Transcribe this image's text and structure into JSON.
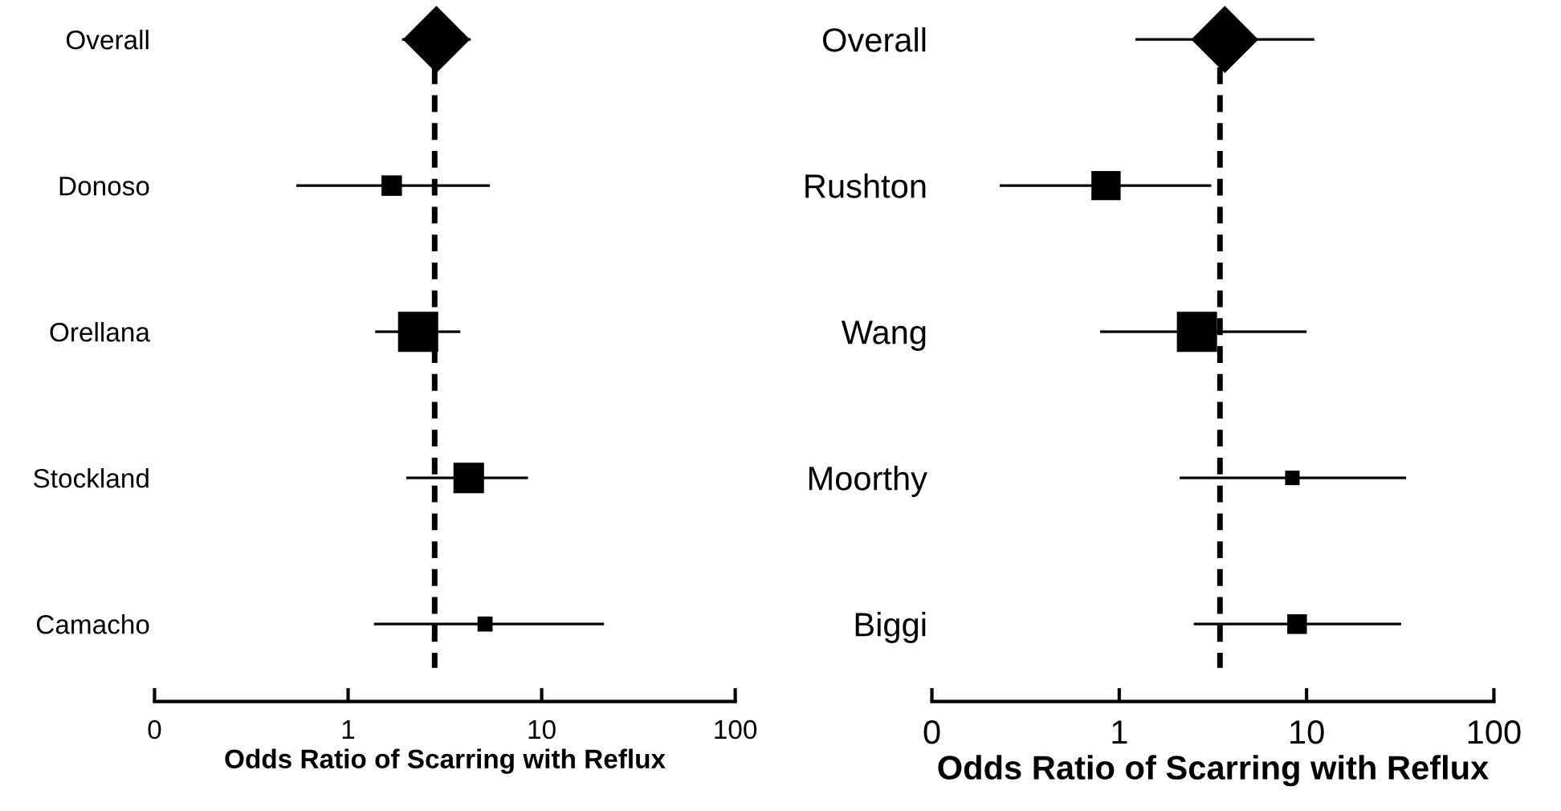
{
  "chart_data": [
    {
      "type": "scatter",
      "orientation": "horizontal",
      "log": "x",
      "xlabel": "Odds Ratio of Scarring with Reflux",
      "categories": [
        "Overall",
        "Donoso",
        "Orellana",
        "Stockland",
        "Camacho"
      ],
      "series": [
        {
          "marker": "diamond",
          "color": "#000000",
          "values": [
            2.86,
            null,
            null,
            null,
            null
          ],
          "errors": [
            [
              1.9,
              4.3
            ],
            null,
            null,
            null,
            null
          ]
        },
        {
          "type": "bubble",
          "marker": "square",
          "color": "#000000",
          "values": [
            null,
            1.68,
            2.3,
            4.2,
            5.1
          ],
          "sizes": [
            null,
            0.26,
            1,
            0.58,
            0.14
          ],
          "errors": [
            null,
            [
              0.54,
              5.4
            ],
            [
              1.38,
              3.8
            ],
            [
              2.0,
              8.5
            ],
            [
              1.36,
              21
            ]
          ]
        }
      ],
      "xlim": [
        0.1,
        100
      ],
      "xticks": [
        {
          "value": 0.1,
          "label": "0"
        },
        1,
        10,
        100
      ],
      "ref_lines": [
        {
          "axis": "x",
          "value": 2.8,
          "line_style": "dashed",
          "color": "#000000"
        }
      ]
    },
    {
      "type": "scatter",
      "orientation": "horizontal",
      "log": "x",
      "xlabel": "Odds Ratio of Scarring with Reflux",
      "categories": [
        "Overall",
        "Rushton",
        "Wang",
        "Moorthy",
        "Biggi"
      ],
      "series": [
        {
          "marker": "diamond",
          "color": "#000000",
          "values": [
            3.66,
            null,
            null,
            null,
            null
          ],
          "errors": [
            [
              1.22,
              11
            ],
            null,
            null,
            null,
            null
          ]
        },
        {
          "type": "bubble",
          "marker": "square",
          "color": "#000000",
          "values": [
            null,
            0.85,
            2.6,
            8.4,
            8.9
          ],
          "sizes": [
            null,
            0.53,
            1,
            0.13,
            0.24
          ],
          "errors": [
            null,
            [
              0.23,
              3.1
            ],
            [
              0.79,
              10
            ],
            [
              2.1,
              34
            ],
            [
              2.5,
              32
            ]
          ]
        }
      ],
      "xlim": [
        0.1,
        100
      ],
      "xticks": [
        {
          "value": 0.1,
          "label": "0"
        },
        1,
        10,
        100
      ],
      "ref_lines": [
        {
          "axis": "x",
          "value": 3.45,
          "line_style": "dashed",
          "color": "#000000"
        }
      ]
    }
  ]
}
